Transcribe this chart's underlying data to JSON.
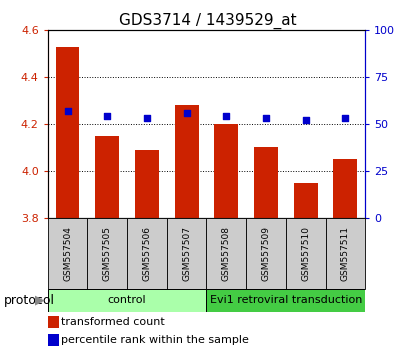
{
  "title": "GDS3714 / 1439529_at",
  "samples": [
    "GSM557504",
    "GSM557505",
    "GSM557506",
    "GSM557507",
    "GSM557508",
    "GSM557509",
    "GSM557510",
    "GSM557511"
  ],
  "bar_values": [
    4.53,
    4.15,
    4.09,
    4.28,
    4.2,
    4.1,
    3.95,
    4.05
  ],
  "percentile_values": [
    57,
    54,
    53,
    56,
    54,
    53,
    52,
    53
  ],
  "bar_bottom": 3.8,
  "ylim_left": [
    3.8,
    4.6
  ],
  "ylim_right": [
    0,
    100
  ],
  "yticks_left": [
    3.8,
    4.0,
    4.2,
    4.4,
    4.6
  ],
  "yticks_right": [
    0,
    25,
    50,
    75,
    100
  ],
  "bar_color": "#cc2200",
  "dot_color": "#0000cc",
  "bg_color": "#ffffff",
  "control_samples": 4,
  "control_label": "control",
  "treatment_label": "Evi1 retroviral transduction",
  "protocol_label": "protocol",
  "legend_bar_label": "transformed count",
  "legend_dot_label": "percentile rank within the sample",
  "control_bg": "#aaffaa",
  "treatment_bg": "#44cc44",
  "sample_bg": "#cccccc",
  "title_fontsize": 11,
  "tick_fontsize": 8,
  "sample_fontsize": 6.5,
  "proto_fontsize": 8,
  "legend_fontsize": 8
}
